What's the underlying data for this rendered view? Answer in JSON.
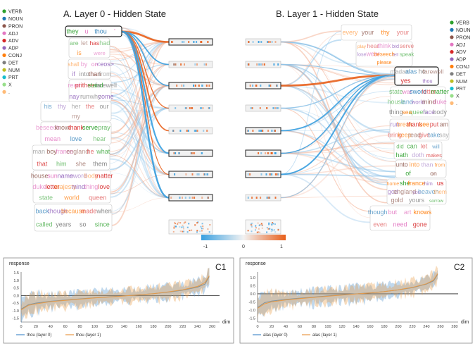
{
  "panel_a": {
    "title": "A. Layer 0 - Hidden State",
    "clusters": [
      {
        "words": [
          "they",
          "u",
          "thou",
          "'"
        ],
        "style": "top"
      },
      {
        "words": [
          "are",
          "let",
          "has",
          "had",
          "is",
          "were"
        ]
      },
      {
        "words": [
          "shall",
          "by",
          "on",
          "<eos>",
          "if",
          "into",
          "than",
          "from"
        ]
      },
      {
        "words": [
          "read",
          "prithee",
          "stand",
          "farewell",
          "nay",
          "run",
          "why",
          "come"
        ]
      },
      {
        "words": [
          "his",
          "thy",
          "her",
          "the",
          "our",
          "my"
        ]
      },
      {
        "words": [
          "beseech",
          "know",
          "thank",
          "serve",
          "pray",
          "mean",
          "love",
          "hear"
        ]
      },
      {
        "words": [
          "man",
          "boy",
          "france",
          "england",
          "he",
          "what",
          "that",
          "him",
          "she",
          "them"
        ]
      },
      {
        "words": [
          "house",
          "sun",
          "name",
          "sword",
          "body",
          "matter",
          "duke",
          "letter",
          "majesty",
          "mind",
          "thing",
          "love",
          "state",
          "world",
          "queen"
        ]
      },
      {
        "words": [
          "back",
          "though",
          "because",
          "made",
          "when",
          "called",
          "years",
          "so",
          "since"
        ]
      }
    ]
  },
  "panel_b": {
    "title": "B. Layer 1 - Hidden State",
    "clusters": [
      {
        "words": [
          "every",
          "your",
          "thy",
          "your"
        ]
      },
      {
        "words": [
          "play",
          "hear",
          "think",
          "bid",
          "serve",
          "lose",
          "wear",
          "beseech",
          "tell",
          "speak",
          "please"
        ]
      },
      {
        "words": [
          "madam",
          "alas",
          "ho",
          "farewell",
          "yes",
          "thou"
        ],
        "style": "top"
      },
      {
        "words": [
          "state",
          "war",
          "sword",
          "letter",
          "matter",
          "house",
          "land",
          "world",
          "mind",
          "duke",
          "thing",
          "sea",
          "queen",
          "face",
          "body"
        ]
      },
      {
        "words": [
          "run",
          "break",
          "thank",
          "see",
          "put",
          "am",
          "bring",
          "keep",
          "read",
          "give",
          "take",
          "say"
        ]
      },
      {
        "words": [
          "did",
          "can",
          "let",
          "will",
          "hath",
          "doth",
          "makes"
        ]
      },
      {
        "words": [
          "unto",
          "into",
          "than",
          "from",
          "of",
          "on"
        ]
      },
      {
        "words": [
          "home",
          "she",
          "france",
          "him",
          "us",
          "god",
          "england",
          "you",
          "heaven",
          "them",
          "gold",
          "yours",
          "sorrow"
        ]
      },
      {
        "words": [
          "though",
          "but",
          "art",
          "knows",
          "even",
          "need",
          "gone"
        ]
      }
    ]
  },
  "legend": {
    "tags": [
      {
        "label": "VERB",
        "color": "#2ca02c"
      },
      {
        "label": "NOUN",
        "color": "#1f77b4"
      },
      {
        "label": "PRON",
        "color": "#8c564b"
      },
      {
        "label": "ADJ",
        "color": "#e377c2"
      },
      {
        "label": "ADV",
        "color": "#d62728"
      },
      {
        "label": "ADP",
        "color": "#9467bd"
      },
      {
        "label": "CONJ",
        "color": "#ff7f0e"
      },
      {
        "label": "DET",
        "color": "#7f7f7f"
      },
      {
        "label": "NUM",
        "color": "#bcbd22"
      },
      {
        "label": "PRT",
        "color": "#17becf"
      },
      {
        "label": "X",
        "color": "#98df8a"
      },
      {
        "label": ".",
        "color": "#ffbb78"
      }
    ]
  },
  "colorbar": {
    "min": "-1",
    "mid": "0",
    "max": "1",
    "neg_color": "#3aa0e0",
    "pos_color": "#e8601c"
  },
  "charts": [
    {
      "label": "C1",
      "ylabel": "response",
      "xlabel": "dim",
      "legend": [
        "thou (layer 0)",
        "thou (layer 1)"
      ]
    },
    {
      "label": "C2",
      "ylabel": "response",
      "xlabel": "dim",
      "legend": [
        "alas (layer 0)",
        "alas (layer 1)"
      ]
    }
  ],
  "chart_data": [
    {
      "type": "line",
      "title": "C1",
      "xlabel": "dim",
      "ylabel": "response",
      "x_ticks": [
        0,
        20,
        40,
        60,
        80,
        100,
        120,
        140,
        160,
        180,
        200,
        220,
        240,
        260
      ],
      "y_ticks": [
        "1.5",
        "1.0",
        "0.5",
        "0.0",
        "-0.5",
        "-1.0",
        "-1.5"
      ],
      "xlim": [
        0,
        270
      ],
      "ylim": [
        -1.75,
        1.55
      ],
      "series": [
        {
          "name": "thou (layer 0)",
          "color": "#4a8ecb",
          "x": [
            0,
            10,
            20,
            40,
            60,
            80,
            100,
            120,
            140,
            160,
            180,
            200,
            220,
            240,
            250,
            256
          ],
          "values": [
            -0.9,
            -0.6,
            -0.5,
            -0.38,
            -0.3,
            -0.22,
            -0.15,
            -0.08,
            -0.02,
            0.05,
            0.12,
            0.22,
            0.35,
            0.55,
            0.75,
            1.25
          ]
        },
        {
          "name": "thou (layer 1)",
          "color": "#e89a45",
          "x": [
            0,
            10,
            20,
            40,
            60,
            80,
            100,
            120,
            140,
            160,
            180,
            200,
            220,
            240,
            250,
            256
          ],
          "values": [
            -0.95,
            -0.65,
            -0.55,
            -0.4,
            -0.32,
            -0.24,
            -0.16,
            -0.1,
            -0.03,
            0.04,
            0.12,
            0.24,
            0.38,
            0.6,
            0.85,
            1.3
          ]
        }
      ]
    },
    {
      "type": "line",
      "title": "C2",
      "xlabel": "dim",
      "ylabel": "response",
      "x_ticks": [
        0,
        20,
        40,
        60,
        80,
        100,
        120,
        140,
        160,
        180,
        200,
        220,
        240,
        260,
        280
      ],
      "y_ticks": [
        "1.0",
        "0.5",
        "0.0",
        "-0.5",
        "-1.0",
        "-1.5"
      ],
      "xlim": [
        0,
        285
      ],
      "ylim": [
        -1.75,
        1.35
      ],
      "series": [
        {
          "name": "alas (layer 0)",
          "color": "#4a8ecb",
          "x": [
            0,
            10,
            20,
            40,
            60,
            80,
            100,
            120,
            140,
            160,
            180,
            200,
            220,
            240,
            250,
            256
          ],
          "values": [
            -0.85,
            -0.55,
            -0.45,
            -0.35,
            -0.27,
            -0.2,
            -0.13,
            -0.06,
            0.0,
            0.06,
            0.14,
            0.24,
            0.38,
            0.6,
            0.8,
            1.2
          ]
        },
        {
          "name": "alas (layer 1)",
          "color": "#e89a45",
          "x": [
            0,
            10,
            20,
            40,
            60,
            80,
            100,
            120,
            140,
            160,
            180,
            200,
            220,
            240,
            250,
            256
          ],
          "values": [
            -0.9,
            -0.62,
            -0.5,
            -0.38,
            -0.3,
            -0.22,
            -0.15,
            -0.08,
            -0.01,
            0.05,
            0.13,
            0.25,
            0.4,
            0.62,
            0.85,
            1.25
          ]
        }
      ]
    }
  ]
}
